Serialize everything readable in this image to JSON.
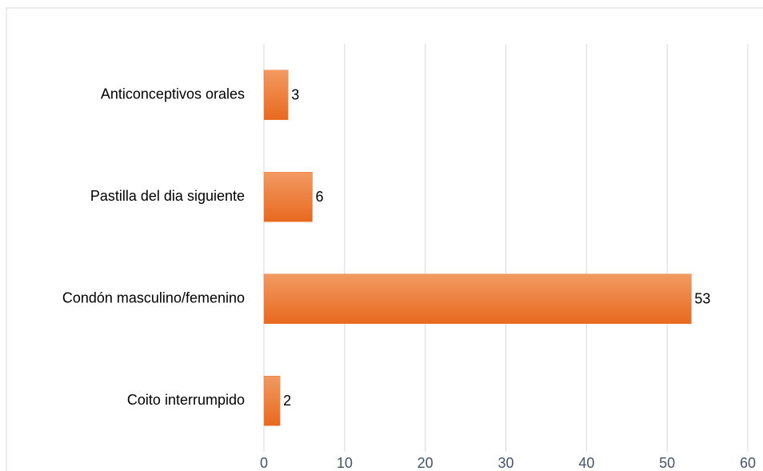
{
  "chart_data": {
    "type": "bar",
    "orientation": "horizontal",
    "categories": [
      "Anticonceptivos orales",
      "Pastilla del dia siguiente",
      "Condón masculino/femenino",
      "Coito interrumpido"
    ],
    "values": [
      3,
      6,
      53,
      2
    ],
    "color": "#ed7d31",
    "xlim": [
      0,
      60
    ],
    "xticks": [
      0,
      10,
      20,
      30,
      40,
      50,
      60
    ],
    "grid": true
  }
}
